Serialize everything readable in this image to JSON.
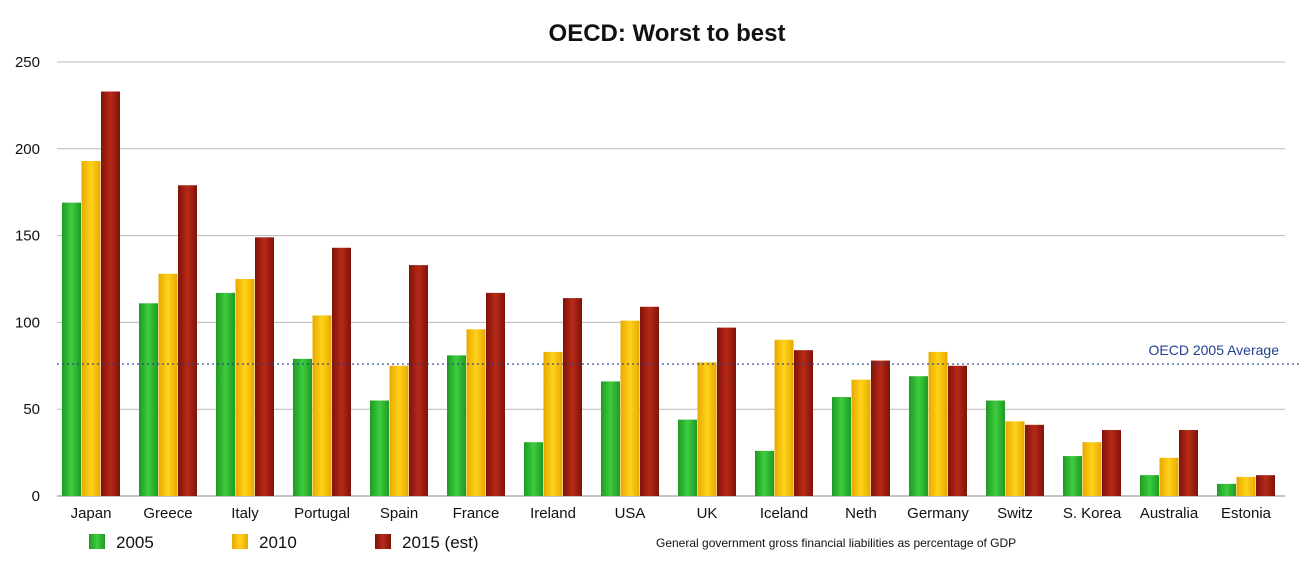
{
  "chart_data": {
    "type": "bar",
    "title": "OECD: Worst to best",
    "xlabel": "",
    "ylabel": "",
    "ylim": [
      0,
      250
    ],
    "yticks": [
      0,
      50,
      100,
      150,
      200,
      250
    ],
    "grid": true,
    "legend_position": "bottom-left",
    "categories": [
      "Japan",
      "Greece",
      "Italy",
      "Portugal",
      "Spain",
      "France",
      "Ireland",
      "USA",
      "UK",
      "Iceland",
      "Neth",
      "Germany",
      "Switz",
      "S. Korea",
      "Australia",
      "Estonia"
    ],
    "series": [
      {
        "name": "2005",
        "color": "#2fae2f",
        "values": [
          169,
          111,
          117,
          79,
          55,
          81,
          31,
          66,
          44,
          26,
          57,
          69,
          55,
          23,
          12,
          7
        ]
      },
      {
        "name": "2010",
        "color": "#f5b800",
        "values": [
          193,
          128,
          125,
          104,
          75,
          96,
          83,
          101,
          77,
          90,
          67,
          83,
          43,
          31,
          22,
          11
        ]
      },
      {
        "name": "2015 (est)",
        "color": "#9e1a10",
        "values": [
          233,
          179,
          149,
          143,
          133,
          117,
          114,
          109,
          97,
          84,
          78,
          75,
          41,
          38,
          38,
          12
        ]
      }
    ],
    "reference_line": {
      "label": "OECD 2005 Average",
      "value": 76,
      "color": "#1f3f8f"
    },
    "note": "General government gross financial liabilities as percentage of GDP"
  }
}
